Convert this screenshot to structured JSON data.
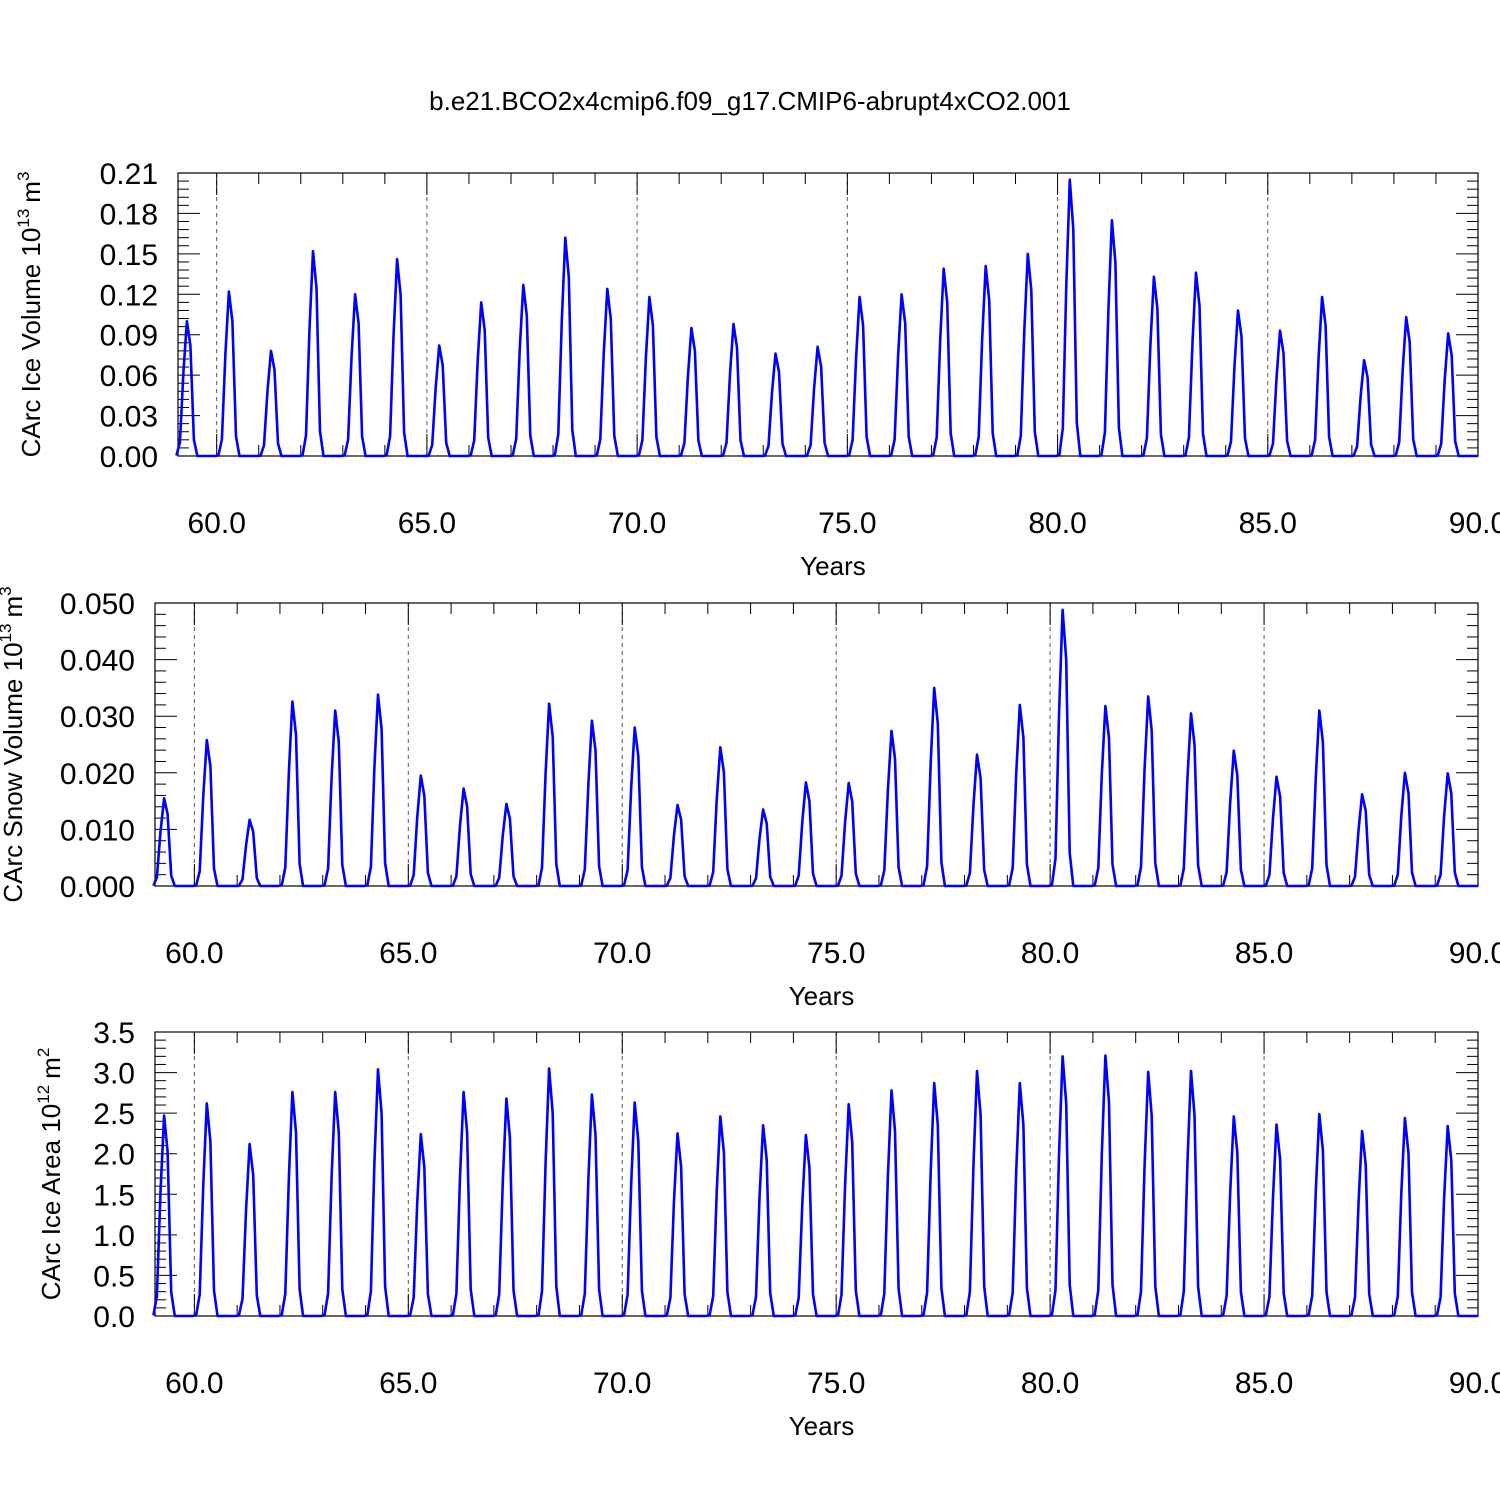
{
  "figure": {
    "title": "b.e21.BCO2x4cmip6.f09_g17.CMIP6-abrupt4xCO2.001"
  },
  "chart_data": [
    {
      "type": "line",
      "ylabel_main": "CArc Ice Volume 10",
      "ylabel_exp": "13",
      "ylabel_unit": "m",
      "ylabel_unit_exp": "3",
      "xlabel": "Years",
      "xlim": [
        59.08,
        90.0
      ],
      "ylim": [
        0.0,
        0.21
      ],
      "x_ticks": [
        "60.0",
        "65.0",
        "70.0",
        "75.0",
        "80.0",
        "85.0",
        "90.0"
      ],
      "y_ticks": [
        "0.00",
        "0.03",
        "0.06",
        "0.09",
        "0.12",
        "0.15",
        "0.18",
        "0.21"
      ],
      "x_grid": "dashed-at-major-ticks",
      "color": "#0000ff",
      "start_year": 59,
      "annual_peaks": [
        0.1,
        0.122,
        0.078,
        0.152,
        0.12,
        0.146,
        0.082,
        0.114,
        0.127,
        0.162,
        0.124,
        0.118,
        0.095,
        0.098,
        0.076,
        0.081,
        0.118,
        0.12,
        0.139,
        0.141,
        0.15,
        0.205,
        0.175,
        0.133,
        0.136,
        0.108,
        0.093,
        0.118,
        0.071,
        0.103,
        0.091
      ]
    },
    {
      "type": "line",
      "ylabel_main": "CArc Snow Volume 10",
      "ylabel_exp": "13",
      "ylabel_unit": "m",
      "ylabel_unit_exp": "3",
      "xlabel": "Years",
      "xlim": [
        59.08,
        90.0
      ],
      "ylim": [
        0.0,
        0.05
      ],
      "x_ticks": [
        "60.0",
        "65.0",
        "70.0",
        "75.0",
        "80.0",
        "85.0",
        "90.0"
      ],
      "y_ticks": [
        "0.000",
        "0.010",
        "0.020",
        "0.030",
        "0.040",
        "0.050"
      ],
      "x_grid": "dashed-at-major-ticks",
      "color": "#0000ff",
      "start_year": 59,
      "annual_peaks": [
        0.0155,
        0.0258,
        0.0117,
        0.0326,
        0.031,
        0.0338,
        0.0195,
        0.0172,
        0.0145,
        0.0322,
        0.0292,
        0.028,
        0.0143,
        0.0245,
        0.0135,
        0.0183,
        0.0182,
        0.0274,
        0.035,
        0.0232,
        0.032,
        0.0488,
        0.0318,
        0.0335,
        0.0305,
        0.0239,
        0.0193,
        0.031,
        0.0162,
        0.02,
        0.0199
      ]
    },
    {
      "type": "line",
      "ylabel_main": "CArc Ice Area 10",
      "ylabel_exp": "12",
      "ylabel_unit": "m",
      "ylabel_unit_exp": "2",
      "xlabel": "Years",
      "xlim": [
        59.08,
        90.0
      ],
      "ylim": [
        0.0,
        3.5
      ],
      "x_ticks": [
        "60.0",
        "65.0",
        "70.0",
        "75.0",
        "80.0",
        "85.0",
        "90.0"
      ],
      "y_ticks": [
        "0.0",
        "0.5",
        "1.0",
        "1.5",
        "2.0",
        "2.5",
        "3.0",
        "3.5"
      ],
      "x_grid": "dashed-at-major-ticks",
      "color": "#0000ff",
      "start_year": 59,
      "annual_peaks": [
        2.47,
        2.62,
        2.12,
        2.76,
        2.76,
        3.04,
        2.24,
        2.76,
        2.68,
        3.05,
        2.73,
        2.63,
        2.25,
        2.46,
        2.35,
        2.23,
        2.61,
        2.78,
        2.87,
        3.02,
        2.87,
        3.2,
        3.21,
        3.01,
        3.02,
        2.46,
        2.36,
        2.49,
        2.28,
        2.44,
        2.34
      ]
    }
  ]
}
